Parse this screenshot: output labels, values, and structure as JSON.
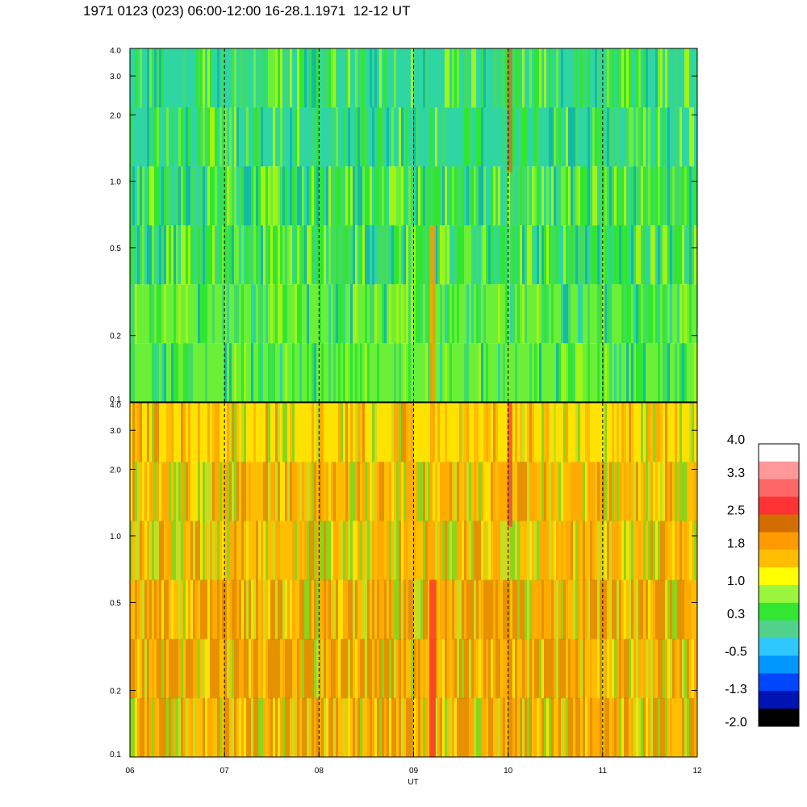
{
  "header": {
    "title": "1971 0123 (023) 06:00-12:00 16-28.1.1971  12-12 UT"
  },
  "chart_data": [
    {
      "type": "heatmap",
      "panel": "upper",
      "x_ticks": [
        "06",
        "07",
        "08",
        "09",
        "10",
        "11",
        "12"
      ],
      "x_range": [
        6,
        12
      ],
      "y_scale": "log",
      "y_range": [
        0.1,
        4.0
      ],
      "y_ticks": [
        {
          "value": 0.1,
          "label": "0.1"
        },
        {
          "value": 0.2,
          "label": "0.2"
        },
        {
          "value": 0.5,
          "label": "0.5"
        },
        {
          "value": 1.0,
          "label": "1.0"
        },
        {
          "value": 2.0,
          "label": "2.0"
        },
        {
          "value": 3.0,
          "label": "3.0"
        },
        {
          "value": 4.0,
          "label": "4.0"
        }
      ],
      "dashed_vertical_lines": [
        7,
        8,
        9,
        10,
        11
      ],
      "dominant_level": "green-blue"
    },
    {
      "type": "heatmap",
      "panel": "lower",
      "x_ticks": [
        "06",
        "07",
        "08",
        "09",
        "10",
        "11",
        "12"
      ],
      "x_range": [
        6,
        12
      ],
      "xlabel": "UT",
      "y_scale": "log",
      "y_range": [
        0.1,
        4.0
      ],
      "y_ticks": [
        {
          "value": 0.1,
          "label": "0.1"
        },
        {
          "value": 0.2,
          "label": "0.2"
        },
        {
          "value": 0.5,
          "label": "0.5"
        },
        {
          "value": 1.0,
          "label": "1.0"
        },
        {
          "value": 2.0,
          "label": "2.0"
        },
        {
          "value": 3.0,
          "label": "3.0"
        },
        {
          "value": 4.0,
          "label": "4.0"
        }
      ],
      "dashed_vertical_lines": [
        7,
        8,
        9,
        10,
        11
      ],
      "dominant_level": "orange-yellow"
    }
  ],
  "colorbar": {
    "range": [
      -2.0,
      4.0
    ],
    "labels": [
      "4.0",
      "3.3",
      "2.5",
      "1.8",
      "1.0",
      "0.3",
      "-0.5",
      "-1.3",
      "-2.0"
    ],
    "colors_top_to_bottom": [
      "#ffffff",
      "#ff9999",
      "#ff6666",
      "#ff3333",
      "#d26e00",
      "#ff9a00",
      "#ffbe00",
      "#ffff00",
      "#9bf53c",
      "#32e632",
      "#50d28c",
      "#2ec8ff",
      "#0096ff",
      "#0046ff",
      "#0014b4",
      "#000000"
    ]
  }
}
